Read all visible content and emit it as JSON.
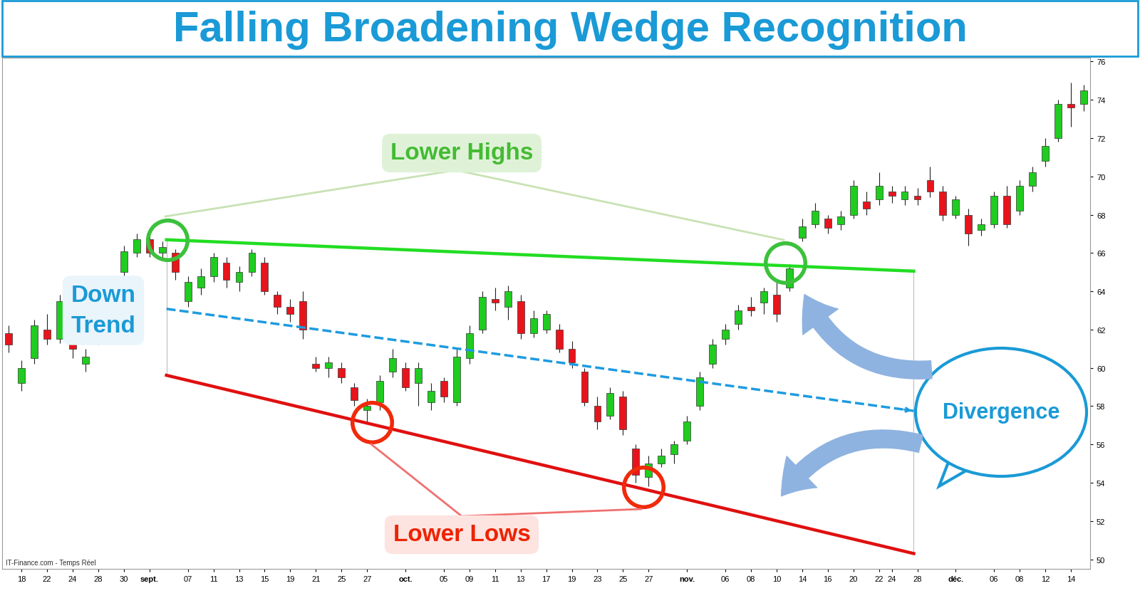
{
  "chart_data": {
    "type": "candlestick",
    "title": "Falling Broadening Wedge Recognition",
    "source": "IT-Finance.com - Temps Réel",
    "categories": [
      null,
      "18",
      null,
      "22",
      null,
      "24",
      null,
      "28",
      null,
      "30",
      null,
      "sept.",
      null,
      null,
      "07",
      null,
      "11",
      null,
      "13",
      null,
      "15",
      null,
      "19",
      null,
      "21",
      null,
      "25",
      null,
      "27",
      null,
      null,
      "oct.",
      null,
      null,
      "05",
      null,
      "09",
      null,
      "11",
      null,
      "13",
      null,
      "17",
      null,
      "19",
      null,
      "23",
      null,
      "25",
      null,
      "27",
      null,
      null,
      "nov.",
      null,
      null,
      "06",
      null,
      "08",
      null,
      "10",
      null,
      "14",
      null,
      "16",
      null,
      "20",
      null,
      "22",
      "24",
      null,
      "28",
      null,
      null,
      "déc.",
      null,
      null,
      "06",
      null,
      "08",
      null,
      "12",
      null,
      "14",
      null
    ],
    "values": [
      [
        61.8,
        62.2,
        60.8,
        61.2
      ],
      [
        59.2,
        60.4,
        58.8,
        60.0
      ],
      [
        60.5,
        62.5,
        60.2,
        62.2
      ],
      [
        62.0,
        62.8,
        61.2,
        61.5
      ],
      [
        61.5,
        63.8,
        61.3,
        63.5
      ],
      [
        62.0,
        62.3,
        60.5,
        61.0
      ],
      [
        60.2,
        61.0,
        59.8,
        60.6
      ],
      [
        61.5,
        63.0,
        61.2,
        62.8
      ],
      [
        63.0,
        64.5,
        62.8,
        64.3
      ],
      [
        65.0,
        66.4,
        64.8,
        66.1
      ],
      [
        66.0,
        67.0,
        65.8,
        66.7
      ],
      [
        66.7,
        67.0,
        65.8,
        66.0
      ],
      [
        66.0,
        66.6,
        65.7,
        66.3
      ],
      [
        66.0,
        66.2,
        64.6,
        65.0
      ],
      [
        63.5,
        64.8,
        63.2,
        64.5
      ],
      [
        64.2,
        65.2,
        63.8,
        64.8
      ],
      [
        64.8,
        66.0,
        64.5,
        65.8
      ],
      [
        65.5,
        65.8,
        64.2,
        64.6
      ],
      [
        64.5,
        65.3,
        64.0,
        65.0
      ],
      [
        65.0,
        66.2,
        64.8,
        66.0
      ],
      [
        65.5,
        65.8,
        63.8,
        64.0
      ],
      [
        63.8,
        64.0,
        62.8,
        63.2
      ],
      [
        63.2,
        63.6,
        62.4,
        62.8
      ],
      [
        63.5,
        64.0,
        61.5,
        62.0
      ],
      [
        60.2,
        60.6,
        59.8,
        60.0
      ],
      [
        60.0,
        60.6,
        59.5,
        60.3
      ],
      [
        60.0,
        60.3,
        59.2,
        59.5
      ],
      [
        59.0,
        59.2,
        58.0,
        58.3
      ],
      [
        57.8,
        58.4,
        57.2,
        58.0
      ],
      [
        58.2,
        59.6,
        57.8,
        59.3
      ],
      [
        59.8,
        61.0,
        59.5,
        60.5
      ],
      [
        60.0,
        60.3,
        58.8,
        59.0
      ],
      [
        59.2,
        60.3,
        58.0,
        60.0
      ],
      [
        58.2,
        59.2,
        57.8,
        58.8
      ],
      [
        59.3,
        59.5,
        58.2,
        58.5
      ],
      [
        58.2,
        61.0,
        58.0,
        60.6
      ],
      [
        60.5,
        62.2,
        60.2,
        61.8
      ],
      [
        62.0,
        64.0,
        61.8,
        63.7
      ],
      [
        63.6,
        64.2,
        63.0,
        63.4
      ],
      [
        63.2,
        64.3,
        62.5,
        64.0
      ],
      [
        63.5,
        63.8,
        61.5,
        61.8
      ],
      [
        61.8,
        63.0,
        61.6,
        62.6
      ],
      [
        62.0,
        63.0,
        61.8,
        62.8
      ],
      [
        62.0,
        62.3,
        60.8,
        61.0
      ],
      [
        61.0,
        61.4,
        60.0,
        60.3
      ],
      [
        59.8,
        60.0,
        58.0,
        58.2
      ],
      [
        58.0,
        58.5,
        56.8,
        57.2
      ],
      [
        57.5,
        59.0,
        57.3,
        58.7
      ],
      [
        58.5,
        58.8,
        56.5,
        56.8
      ],
      [
        55.8,
        56.0,
        54.0,
        54.4
      ],
      [
        54.3,
        55.4,
        53.8,
        55.0
      ],
      [
        55.0,
        55.8,
        54.8,
        55.4
      ],
      [
        55.5,
        56.2,
        55.0,
        56.0
      ],
      [
        56.2,
        57.5,
        56.0,
        57.2
      ],
      [
        58.0,
        59.8,
        57.8,
        59.5
      ],
      [
        60.2,
        61.5,
        60.0,
        61.2
      ],
      [
        61.5,
        62.3,
        61.2,
        62.0
      ],
      [
        62.3,
        63.3,
        62.0,
        63.0
      ],
      [
        63.2,
        63.7,
        62.7,
        63.0
      ],
      [
        63.4,
        64.2,
        62.8,
        64.0
      ],
      [
        63.8,
        64.5,
        62.4,
        62.8
      ],
      [
        64.2,
        65.4,
        64.0,
        65.2
      ],
      [
        66.8,
        67.8,
        66.6,
        67.4
      ],
      [
        67.5,
        68.6,
        67.3,
        68.2
      ],
      [
        67.8,
        68.0,
        67.0,
        67.3
      ],
      [
        67.5,
        68.2,
        67.2,
        67.9
      ],
      [
        68.0,
        69.8,
        67.8,
        69.5
      ],
      [
        68.7,
        69.2,
        68.0,
        68.3
      ],
      [
        68.8,
        70.2,
        68.5,
        69.5
      ],
      [
        69.2,
        69.5,
        68.6,
        69.0
      ],
      [
        68.8,
        69.5,
        68.5,
        69.2
      ],
      [
        69.0,
        69.4,
        68.5,
        68.8
      ],
      [
        69.8,
        70.5,
        68.9,
        69.2
      ],
      [
        69.2,
        69.5,
        67.7,
        68.0
      ],
      [
        68.0,
        69.0,
        67.8,
        68.8
      ],
      [
        68.0,
        68.3,
        66.4,
        67.0
      ],
      [
        67.2,
        67.8,
        66.9,
        67.5
      ],
      [
        67.5,
        69.2,
        67.3,
        69.0
      ],
      [
        69.0,
        69.5,
        67.3,
        67.5
      ],
      [
        68.2,
        69.8,
        68.0,
        69.5
      ],
      [
        69.5,
        70.5,
        69.2,
        70.2
      ],
      [
        70.8,
        72.0,
        70.5,
        71.6
      ],
      [
        72.0,
        74.0,
        71.8,
        73.8
      ],
      [
        73.8,
        74.9,
        72.6,
        73.6
      ],
      [
        73.8,
        74.8,
        73.4,
        74.5
      ]
    ],
    "colors": [
      "#e8141c",
      "#1fcc1f",
      "#1fcc1f",
      "#e8141c",
      "#1fcc1f",
      "#e8141c",
      "#1fcc1f",
      "#1fcc1f",
      "#1fcc1f",
      "#1fcc1f",
      "#1fcc1f",
      "#e8141c",
      "#1fcc1f",
      "#e8141c",
      "#1fcc1f",
      "#1fcc1f",
      "#1fcc1f",
      "#e8141c",
      "#1fcc1f",
      "#1fcc1f",
      "#e8141c",
      "#e8141c",
      "#e8141c",
      "#e8141c",
      "#e8141c",
      "#1fcc1f",
      "#e8141c",
      "#e8141c",
      "#1fcc1f",
      "#1fcc1f",
      "#1fcc1f",
      "#e8141c",
      "#1fcc1f",
      "#1fcc1f",
      "#e8141c",
      "#1fcc1f",
      "#1fcc1f",
      "#1fcc1f",
      "#e8141c",
      "#1fcc1f",
      "#e8141c",
      "#1fcc1f",
      "#1fcc1f",
      "#e8141c",
      "#e8141c",
      "#e8141c",
      "#e8141c",
      "#1fcc1f",
      "#e8141c",
      "#e8141c",
      "#1fcc1f",
      "#1fcc1f",
      "#1fcc1f",
      "#1fcc1f",
      "#1fcc1f",
      "#1fcc1f",
      "#1fcc1f",
      "#1fcc1f",
      "#e8141c",
      "#1fcc1f",
      "#e8141c",
      "#1fcc1f",
      "#1fcc1f",
      "#1fcc1f",
      "#e8141c",
      "#1fcc1f",
      "#1fcc1f",
      "#e8141c",
      "#1fcc1f",
      "#e8141c",
      "#1fcc1f",
      "#e8141c",
      "#e8141c",
      "#e8141c",
      "#1fcc1f",
      "#e8141c",
      "#1fcc1f",
      "#1fcc1f",
      "#e8141c",
      "#1fcc1f",
      "#1fcc1f",
      "#1fcc1f",
      "#1fcc1f",
      "#e8141c",
      "#1fcc1f"
    ],
    "trend_lines": [
      {
        "color": "#22dd22",
        "line_style": "solid",
        "x": [
          12.33,
          70.72
        ],
        "values": [
          66.69,
          65.05
        ]
      },
      {
        "color": "#1e9be0",
        "line_style": "dashed",
        "x": [
          12.33,
          70.72
        ],
        "values": [
          63.08,
          57.75
        ]
      },
      {
        "color": "#e01010",
        "line_style": "solid",
        "x": [
          12.33,
          70.72
        ],
        "values": [
          59.61,
          50.3
        ]
      }
    ],
    "highlights": [
      {
        "color": "#3cc13c",
        "x": 12.4,
        "value": 66.69
      },
      {
        "color": "#3cc13c",
        "x": 60.7,
        "value": 65.5
      },
      {
        "color": "#f02a0a",
        "x": 28.4,
        "value": 57.15
      },
      {
        "color": "#f02a0a",
        "x": 49.6,
        "value": 53.77
      }
    ],
    "annotations": [
      {
        "text": "Lower Highs",
        "color": "#44bb33"
      },
      {
        "text": "Lower Lows",
        "color": "#ee2200"
      },
      {
        "text": "Down\nTrend",
        "color": "#1a9ad6"
      },
      {
        "text": "Divergence",
        "color": "#1a9ad6"
      }
    ],
    "xlim": [
      -0.5,
      84.5
    ],
    "ylim": [
      49.5,
      76.2
    ],
    "yticks": [
      50,
      52,
      54,
      56,
      58,
      60,
      62,
      64,
      66,
      68,
      70,
      72,
      74,
      76
    ],
    "grid": false
  }
}
